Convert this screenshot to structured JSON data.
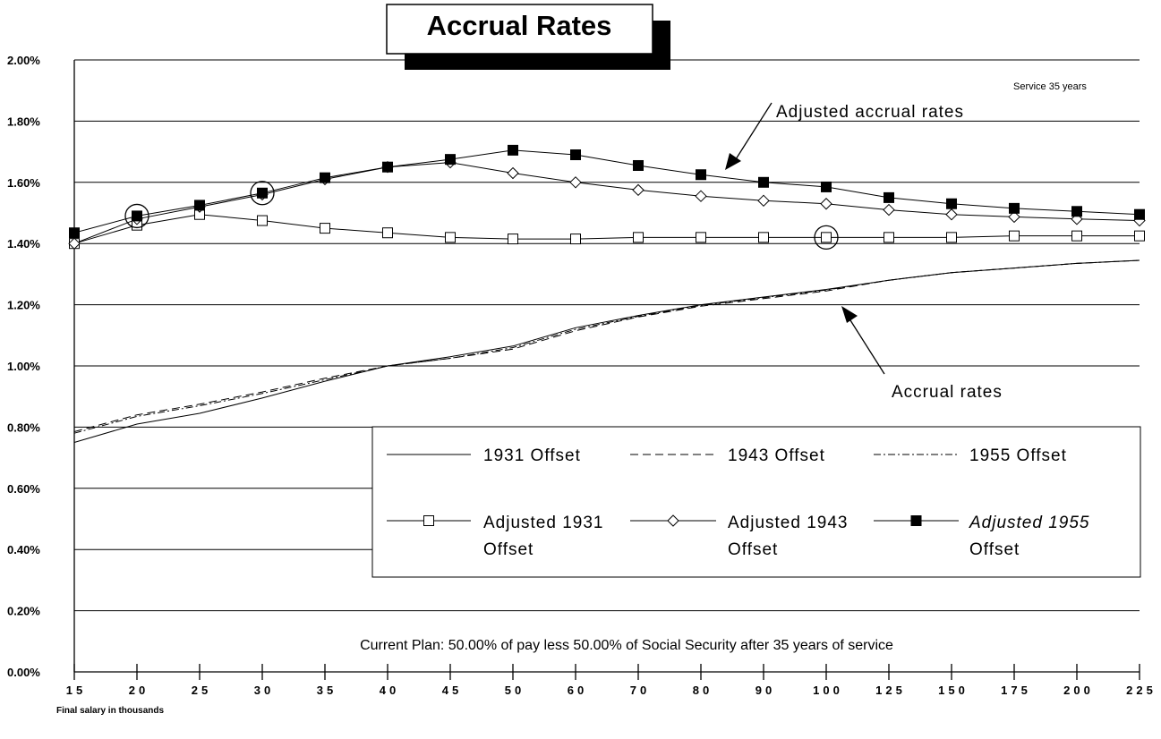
{
  "chart_data": {
    "type": "line",
    "title": "Accrual Rates",
    "xlabel": "Final salary in thousands",
    "ylabel": "",
    "categories": [
      "15",
      "20",
      "25",
      "30",
      "35",
      "40",
      "45",
      "50",
      "60",
      "70",
      "80",
      "90",
      "100",
      "125",
      "150",
      "175",
      "200",
      "225"
    ],
    "y_ticks": [
      "0.00%",
      "0.20%",
      "0.40%",
      "0.60%",
      "0.80%",
      "1.00%",
      "1.20%",
      "1.40%",
      "1.60%",
      "1.80%",
      "2.00%"
    ],
    "ylim": [
      0,
      2.0
    ],
    "y_unit": "%",
    "grid": "horizontal",
    "series": [
      {
        "name": "1931 Offset",
        "style": "solid",
        "marker": "none",
        "values": [
          0.75,
          0.81,
          0.845,
          0.895,
          0.95,
          1.0,
          1.03,
          1.065,
          1.125,
          1.165,
          1.2,
          1.225,
          1.25,
          1.28,
          1.305,
          1.32,
          1.335,
          1.345
        ]
      },
      {
        "name": "1943 Offset",
        "style": "dashed",
        "marker": "none",
        "values": [
          0.785,
          0.84,
          0.875,
          0.915,
          0.96,
          1.0,
          1.025,
          1.055,
          1.115,
          1.16,
          1.195,
          1.22,
          1.245,
          1.28,
          1.305,
          1.32,
          1.335,
          1.345
        ]
      },
      {
        "name": "1955 Offset",
        "style": "dashdot",
        "marker": "none",
        "values": [
          0.78,
          0.835,
          0.87,
          0.91,
          0.955,
          1.0,
          1.025,
          1.06,
          1.12,
          1.162,
          1.198,
          1.223,
          1.248,
          1.28,
          1.305,
          1.32,
          1.335,
          1.345
        ]
      },
      {
        "name": "Adjusted 1931 Offset",
        "style": "solid",
        "marker": "open-square",
        "values": [
          1.4,
          1.46,
          1.495,
          1.475,
          1.45,
          1.435,
          1.42,
          1.415,
          1.415,
          1.42,
          1.42,
          1.42,
          1.42,
          1.42,
          1.42,
          1.425,
          1.425,
          1.425
        ]
      },
      {
        "name": "Adjusted 1943 Offset",
        "style": "solid",
        "marker": "open-diamond",
        "values": [
          1.4,
          1.48,
          1.52,
          1.56,
          1.61,
          1.65,
          1.665,
          1.63,
          1.6,
          1.575,
          1.555,
          1.54,
          1.53,
          1.51,
          1.495,
          1.487,
          1.48,
          1.475
        ]
      },
      {
        "name": "Adjusted 1955 Offset",
        "style": "solid",
        "marker": "filled-square",
        "values": [
          1.435,
          1.49,
          1.525,
          1.565,
          1.615,
          1.65,
          1.675,
          1.705,
          1.69,
          1.655,
          1.625,
          1.6,
          1.585,
          1.55,
          1.53,
          1.515,
          1.505,
          1.495
        ]
      }
    ],
    "legend": {
      "placement": "bottom-center",
      "lines": [
        [
          "1931  Offset",
          "1943  Offset",
          "1955  Offset"
        ],
        [
          [
            "Adjusted  1931",
            "Offset"
          ],
          [
            "Adjusted  1943",
            "Offset"
          ],
          [
            "Adjusted  1955",
            "Offset"
          ]
        ]
      ]
    },
    "annotations": {
      "service": "Service 35 years",
      "adjusted": "Adjusted  accrual  rates",
      "accrual": "Accrual  rates",
      "plan_note": "Current Plan:  50.00% of pay less 50.00% of Social Security after 35 years of service"
    },
    "circled_points": [
      {
        "series": "Adjusted 1955 Offset",
        "x": "20"
      },
      {
        "series": "Adjusted 1955 Offset",
        "x": "30"
      },
      {
        "series": "Adjusted 1931 Offset",
        "x": "100"
      }
    ]
  }
}
